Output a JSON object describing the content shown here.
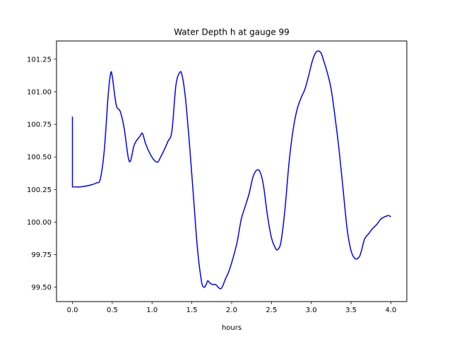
{
  "chart_data": {
    "type": "line",
    "title": "Water Depth h at gauge 99",
    "xlabel": "hours",
    "ylabel": "",
    "xlim": [
      -0.2,
      4.2
    ],
    "ylim": [
      99.39,
      101.39
    ],
    "grid": false,
    "x_ticks": [
      0.0,
      0.5,
      1.0,
      1.5,
      2.0,
      2.5,
      3.0,
      3.5,
      4.0
    ],
    "x_tick_labels": [
      "0.0",
      "0.5",
      "1.0",
      "1.5",
      "2.0",
      "2.5",
      "3.0",
      "3.5",
      "4.0"
    ],
    "y_ticks": [
      99.5,
      99.75,
      100.0,
      100.25,
      100.5,
      100.75,
      101.0,
      101.25
    ],
    "y_tick_labels": [
      "99.50",
      "99.75",
      "100.00",
      "100.25",
      "100.50",
      "100.75",
      "101.00",
      "101.25"
    ],
    "series": [
      {
        "color": "#0000ff",
        "x": [
          0.0,
          0.0,
          0.1,
          0.2,
          0.3,
          0.35,
          0.4,
          0.45,
          0.48,
          0.5,
          0.55,
          0.6,
          0.65,
          0.7,
          0.73,
          0.77,
          0.8,
          0.85,
          0.88,
          0.92,
          0.97,
          1.02,
          1.07,
          1.1,
          1.15,
          1.2,
          1.25,
          1.3,
          1.35,
          1.38,
          1.42,
          1.47,
          1.52,
          1.57,
          1.62,
          1.65,
          1.68,
          1.7,
          1.73,
          1.77,
          1.8,
          1.85,
          1.88,
          1.92,
          1.97,
          2.02,
          2.07,
          2.12,
          2.17,
          2.22,
          2.27,
          2.32,
          2.36,
          2.4,
          2.45,
          2.5,
          2.55,
          2.58,
          2.62,
          2.67,
          2.72,
          2.77,
          2.82,
          2.87,
          2.92,
          2.97,
          3.02,
          3.07,
          3.12,
          3.15,
          3.2,
          3.25,
          3.3,
          3.35,
          3.4,
          3.45,
          3.5,
          3.55,
          3.6,
          3.63,
          3.67,
          3.72,
          3.77,
          3.82,
          3.87,
          3.92,
          3.97,
          4.0
        ],
        "y": [
          100.81,
          100.27,
          100.27,
          100.28,
          100.3,
          100.33,
          100.55,
          100.98,
          101.14,
          101.12,
          100.9,
          100.85,
          100.72,
          100.5,
          100.47,
          100.58,
          100.62,
          100.66,
          100.68,
          100.6,
          100.53,
          100.48,
          100.46,
          100.49,
          100.55,
          100.62,
          100.7,
          101.05,
          101.15,
          101.12,
          100.95,
          100.6,
          100.2,
          99.8,
          99.55,
          99.5,
          99.52,
          99.55,
          99.53,
          99.52,
          99.52,
          99.49,
          99.5,
          99.56,
          99.63,
          99.73,
          99.85,
          100.02,
          100.12,
          100.22,
          100.35,
          100.4,
          100.38,
          100.28,
          100.05,
          99.88,
          99.8,
          99.79,
          99.85,
          100.1,
          100.45,
          100.7,
          100.86,
          100.95,
          101.02,
          101.13,
          101.25,
          101.31,
          101.3,
          101.25,
          101.15,
          101.02,
          100.8,
          100.55,
          100.25,
          99.95,
          99.78,
          99.72,
          99.73,
          99.78,
          99.87,
          99.91,
          99.95,
          99.98,
          100.02,
          100.04,
          100.05,
          100.04
        ]
      }
    ]
  }
}
